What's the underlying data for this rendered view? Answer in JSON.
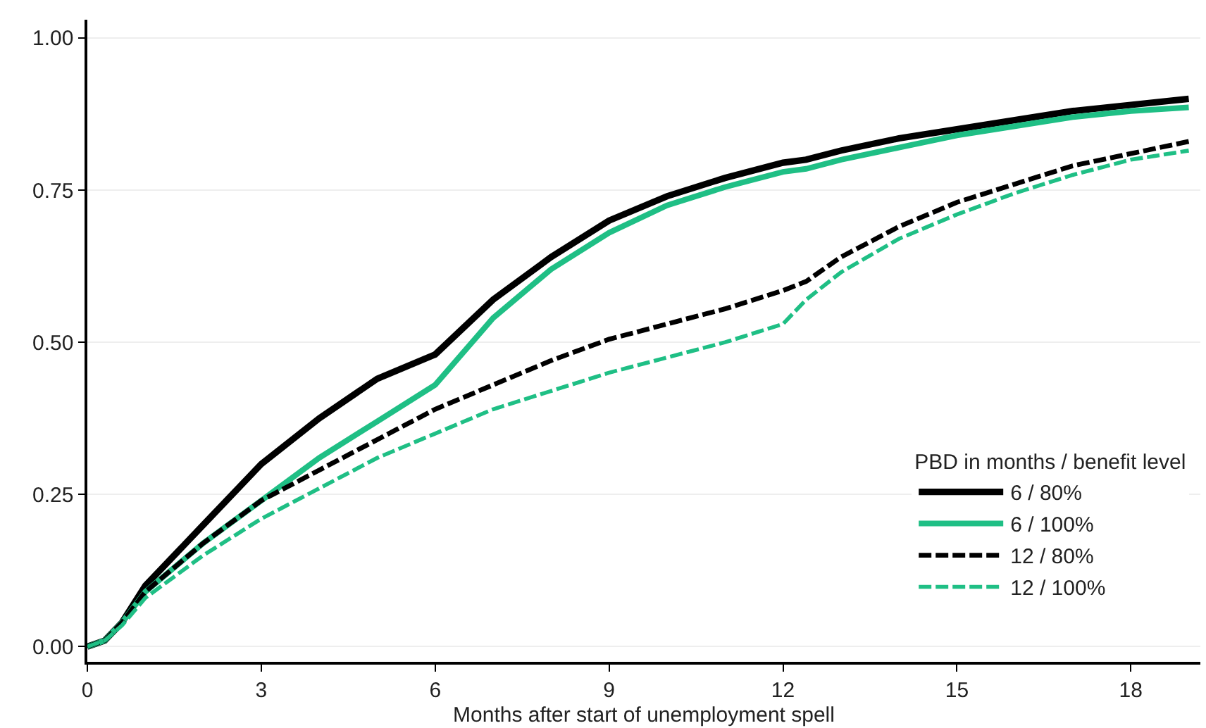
{
  "chart_data": {
    "type": "line",
    "xlabel": "Months after start of unemployment spell",
    "legend_title": "PBD in months / benefit level",
    "x": [
      0,
      0.3,
      0.6,
      1,
      2,
      3,
      4,
      5,
      6,
      7,
      8,
      9,
      10,
      11,
      12,
      12.4,
      13,
      14,
      15,
      16,
      17,
      18,
      19
    ],
    "series": [
      {
        "name": "6 / 80%",
        "color": "#000000",
        "line_style": "solid",
        "values": [
          0,
          0.01,
          0.04,
          0.1,
          0.2,
          0.3,
          0.375,
          0.44,
          0.48,
          0.57,
          0.64,
          0.7,
          0.74,
          0.77,
          0.795,
          0.8,
          0.815,
          0.835,
          0.85,
          0.865,
          0.88,
          0.89,
          0.9
        ]
      },
      {
        "name": "6 / 100%",
        "color": "#1fbf85",
        "line_style": "solid",
        "values": [
          0,
          0.01,
          0.04,
          0.09,
          0.17,
          0.24,
          0.31,
          0.37,
          0.43,
          0.54,
          0.62,
          0.68,
          0.725,
          0.755,
          0.78,
          0.785,
          0.8,
          0.82,
          0.84,
          0.855,
          0.87,
          0.88,
          0.886
        ]
      },
      {
        "name": "12 / 80%",
        "color": "#000000",
        "line_style": "dashed",
        "values": [
          0,
          0.01,
          0.04,
          0.09,
          0.17,
          0.24,
          0.29,
          0.34,
          0.39,
          0.43,
          0.47,
          0.505,
          0.53,
          0.555,
          0.585,
          0.6,
          0.64,
          0.69,
          0.73,
          0.76,
          0.79,
          0.81,
          0.83
        ]
      },
      {
        "name": "12 / 100%",
        "color": "#1fbf85",
        "line_style": "dashed",
        "values": [
          0,
          0.01,
          0.035,
          0.08,
          0.15,
          0.21,
          0.26,
          0.31,
          0.35,
          0.39,
          0.42,
          0.45,
          0.475,
          0.5,
          0.53,
          0.57,
          0.615,
          0.67,
          0.71,
          0.745,
          0.775,
          0.8,
          0.815
        ]
      }
    ],
    "xlim": [
      0,
      19.2
    ],
    "xticks": [
      0,
      3,
      6,
      9,
      12,
      15,
      18
    ],
    "ylim": [
      -0.025,
      1.03
    ],
    "yticks": [
      {
        "value": 0,
        "label": "0.00"
      },
      {
        "value": 0.25,
        "label": "0.25"
      },
      {
        "value": 0.5,
        "label": "0.50"
      },
      {
        "value": 0.75,
        "label": "0.75"
      },
      {
        "value": 1,
        "label": "1.00"
      }
    ],
    "grid": "y",
    "legend": "bottom right",
    "marker": "none"
  }
}
